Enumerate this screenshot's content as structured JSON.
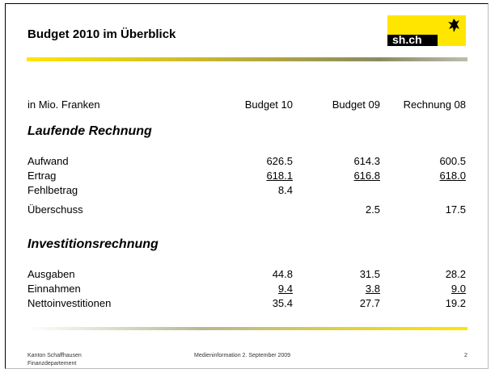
{
  "header": {
    "title": "Budget 2010 im Überblick",
    "logo": "sh.ch"
  },
  "table": {
    "unit_label": "in Mio. Franken",
    "columns": [
      "Budget 10",
      "Budget 09",
      "Rechnung 08"
    ],
    "sections": [
      {
        "title": "Laufende Rechnung",
        "rows": [
          {
            "label": "Aufwand",
            "values": [
              "626.5",
              "614.3",
              "600.5"
            ]
          },
          {
            "label": "Ertrag",
            "values": [
              "618.1",
              "616.8",
              "618.0"
            ],
            "underline": true
          },
          {
            "label": "Fehlbetrag",
            "values": [
              "8.4",
              null,
              null
            ]
          },
          {
            "label": "Überschuss",
            "values": [
              null,
              "2.5",
              "17.5"
            ]
          }
        ]
      },
      {
        "title": "Investitionsrechnung",
        "rows": [
          {
            "label": "Ausgaben",
            "values": [
              "44.8",
              "31.5",
              "28.2"
            ]
          },
          {
            "label": "Einnahmen",
            "values": [
              "9.4",
              "3.8",
              "9.0"
            ],
            "underline": true
          },
          {
            "label": "Nettoinvestitionen",
            "values": [
              "35.4",
              "27.7",
              "19.2"
            ]
          }
        ]
      }
    ]
  },
  "footer": {
    "org": "Kanton Schaffhausen",
    "department": "Finanzdepartement",
    "event": "Medieninformation 2. September 2009",
    "page": "2"
  }
}
